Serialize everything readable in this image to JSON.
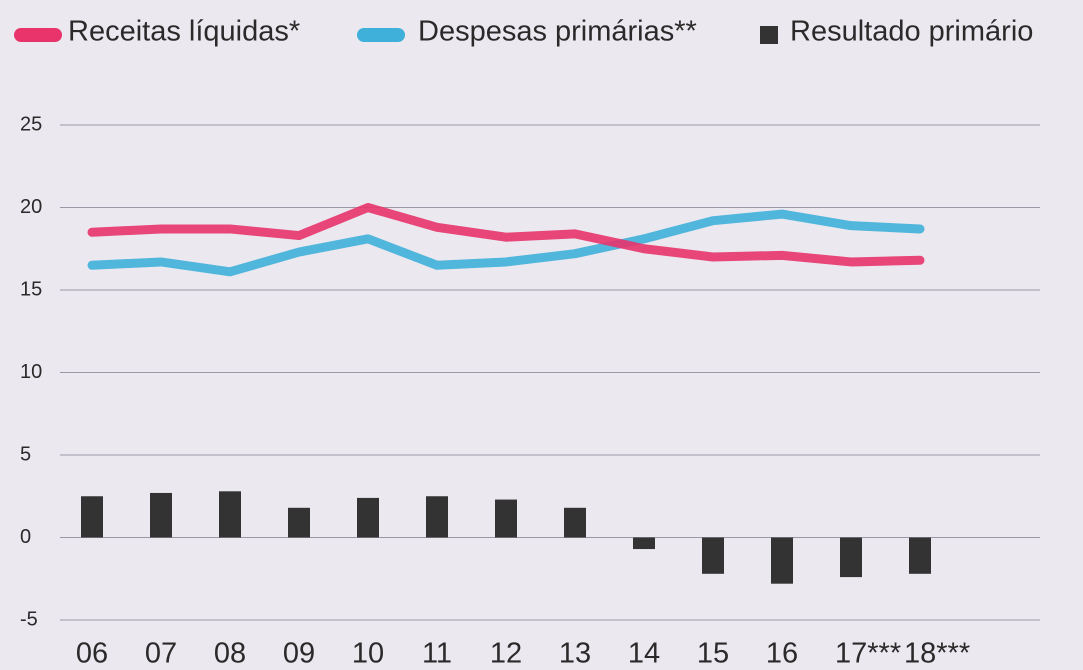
{
  "chart_data": {
    "type": "combo",
    "categories": [
      "06",
      "07",
      "08",
      "09",
      "10",
      "11",
      "12",
      "13",
      "14",
      "15",
      "16",
      "17***",
      "18***"
    ],
    "series": [
      {
        "name": "Receitas líquidas*",
        "type": "line",
        "color": "#e8336b",
        "values": [
          18.5,
          18.7,
          18.7,
          18.3,
          20.0,
          18.8,
          18.2,
          18.4,
          17.5,
          17.0,
          17.1,
          16.7,
          16.8
        ]
      },
      {
        "name": "Despesas primárias**",
        "type": "line",
        "color": "#3fb0d9",
        "values": [
          16.5,
          16.7,
          16.1,
          17.3,
          18.1,
          16.5,
          16.7,
          17.2,
          18.1,
          19.2,
          19.6,
          18.9,
          18.7
        ]
      },
      {
        "name": "Resultado primário",
        "type": "bar",
        "color": "#333333",
        "values": [
          2.5,
          2.7,
          2.8,
          1.8,
          2.4,
          2.5,
          2.3,
          1.8,
          -0.7,
          -2.2,
          -2.8,
          -2.4,
          -2.2
        ]
      }
    ],
    "ylim": [
      -5,
      25
    ],
    "yticks": [
      -5,
      0,
      5,
      10,
      15,
      20,
      25
    ],
    "grid": true
  }
}
